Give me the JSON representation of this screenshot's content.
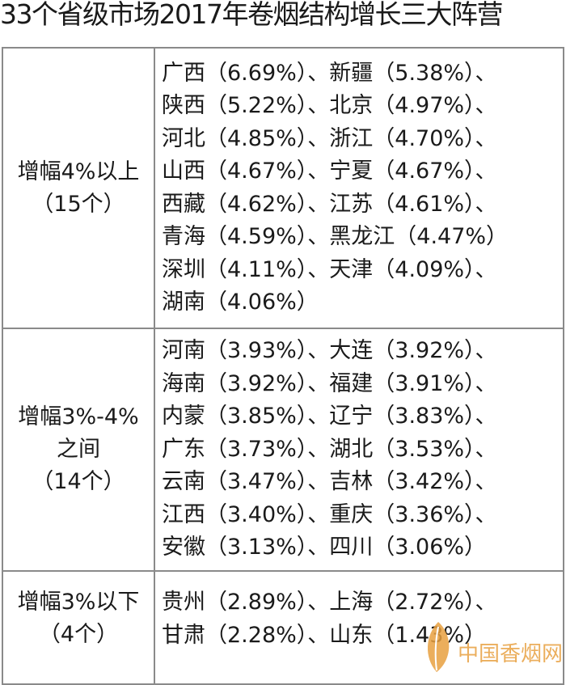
{
  "title": "33个省级市场2017年卷烟结构增长三大阵营",
  "rows": [
    {
      "label": [
        "增幅4%以上",
        "（15个）"
      ],
      "lines": [
        "广西（6.69%）、新疆（5.38%）、",
        "陕西（5.22%）、北京（4.97%）、",
        "河北（4.85%）、浙江（4.70%）、",
        "山西（4.67%）、宁夏（4.67%）、",
        "西藏（4.62%）、江苏（4.61%）、",
        "青海（4.59%）、黑龙江（4.47%）",
        "深圳（4.11%）、天津（4.09%）、",
        "湖南（4.06%）"
      ]
    },
    {
      "label": [
        "增幅3%-4%",
        "之间",
        "（14个）"
      ],
      "lines": [
        "河南（3.93%）、大连（3.92%）、",
        "海南（3.92%）、福建（3.91%）、",
        "内蒙（3.85%）、辽宁（3.83%）、",
        "广东（3.73%）、湖北（3.53%）、",
        "云南（3.47%）、吉林（3.42%）、",
        "江西（3.40%）、重庆（3.36%）、",
        "安徽（3.13%）、四川（3.06%）"
      ]
    },
    {
      "label": [
        "增幅3%以下",
        "（4个）"
      ],
      "lines": [
        "贵州（2.89%）、上海（2.72%）、",
        "甘肃（2.28%）、山东（1.43%）"
      ]
    }
  ],
  "watermark": {
    "text": "中国香烟网",
    "color": "#e8a040"
  }
}
